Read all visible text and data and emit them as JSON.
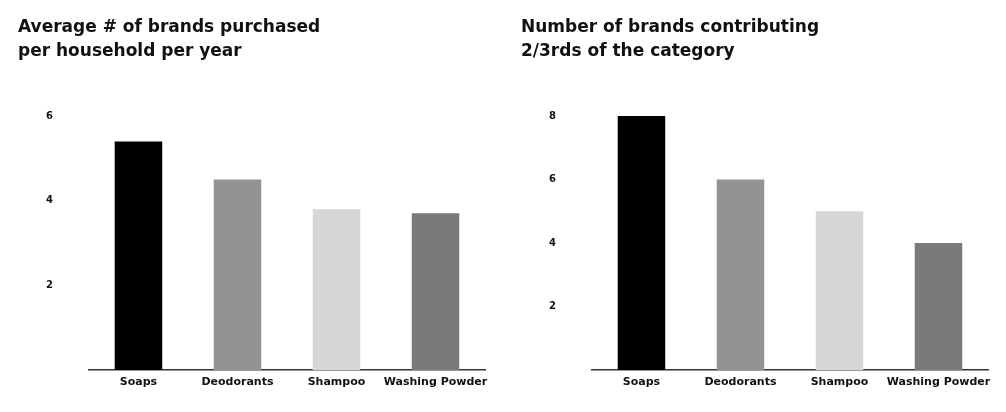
{
  "chart_data": [
    {
      "type": "bar",
      "title": "Average # of brands purchased\nper household per year",
      "categories": [
        "Soaps",
        "Deodorants",
        "Shampoo",
        "Washing Powder"
      ],
      "values": [
        5.4,
        4.5,
        3.8,
        3.7
      ],
      "colors": [
        "#000000",
        "#939393",
        "#d6d6d6",
        "#7a7a7a"
      ],
      "ylim": [
        0,
        6
      ],
      "yticks": [
        {
          "value": 0,
          "label": null
        },
        2,
        4,
        6
      ],
      "grid": false,
      "legend": false
    },
    {
      "type": "bar",
      "title": "Number of brands contributing\n2/3rds of the category",
      "categories": [
        "Soaps",
        "Deodorants",
        "Shampoo",
        "Washing Powder"
      ],
      "values": [
        8,
        6,
        5,
        4
      ],
      "colors": [
        "#000000",
        "#939393",
        "#d6d6d6",
        "#7a7a7a"
      ],
      "ylim": [
        0,
        8
      ],
      "yticks": [
        {
          "value": 0,
          "label": null
        },
        2,
        4,
        6,
        8
      ],
      "grid": false,
      "legend": false
    }
  ]
}
